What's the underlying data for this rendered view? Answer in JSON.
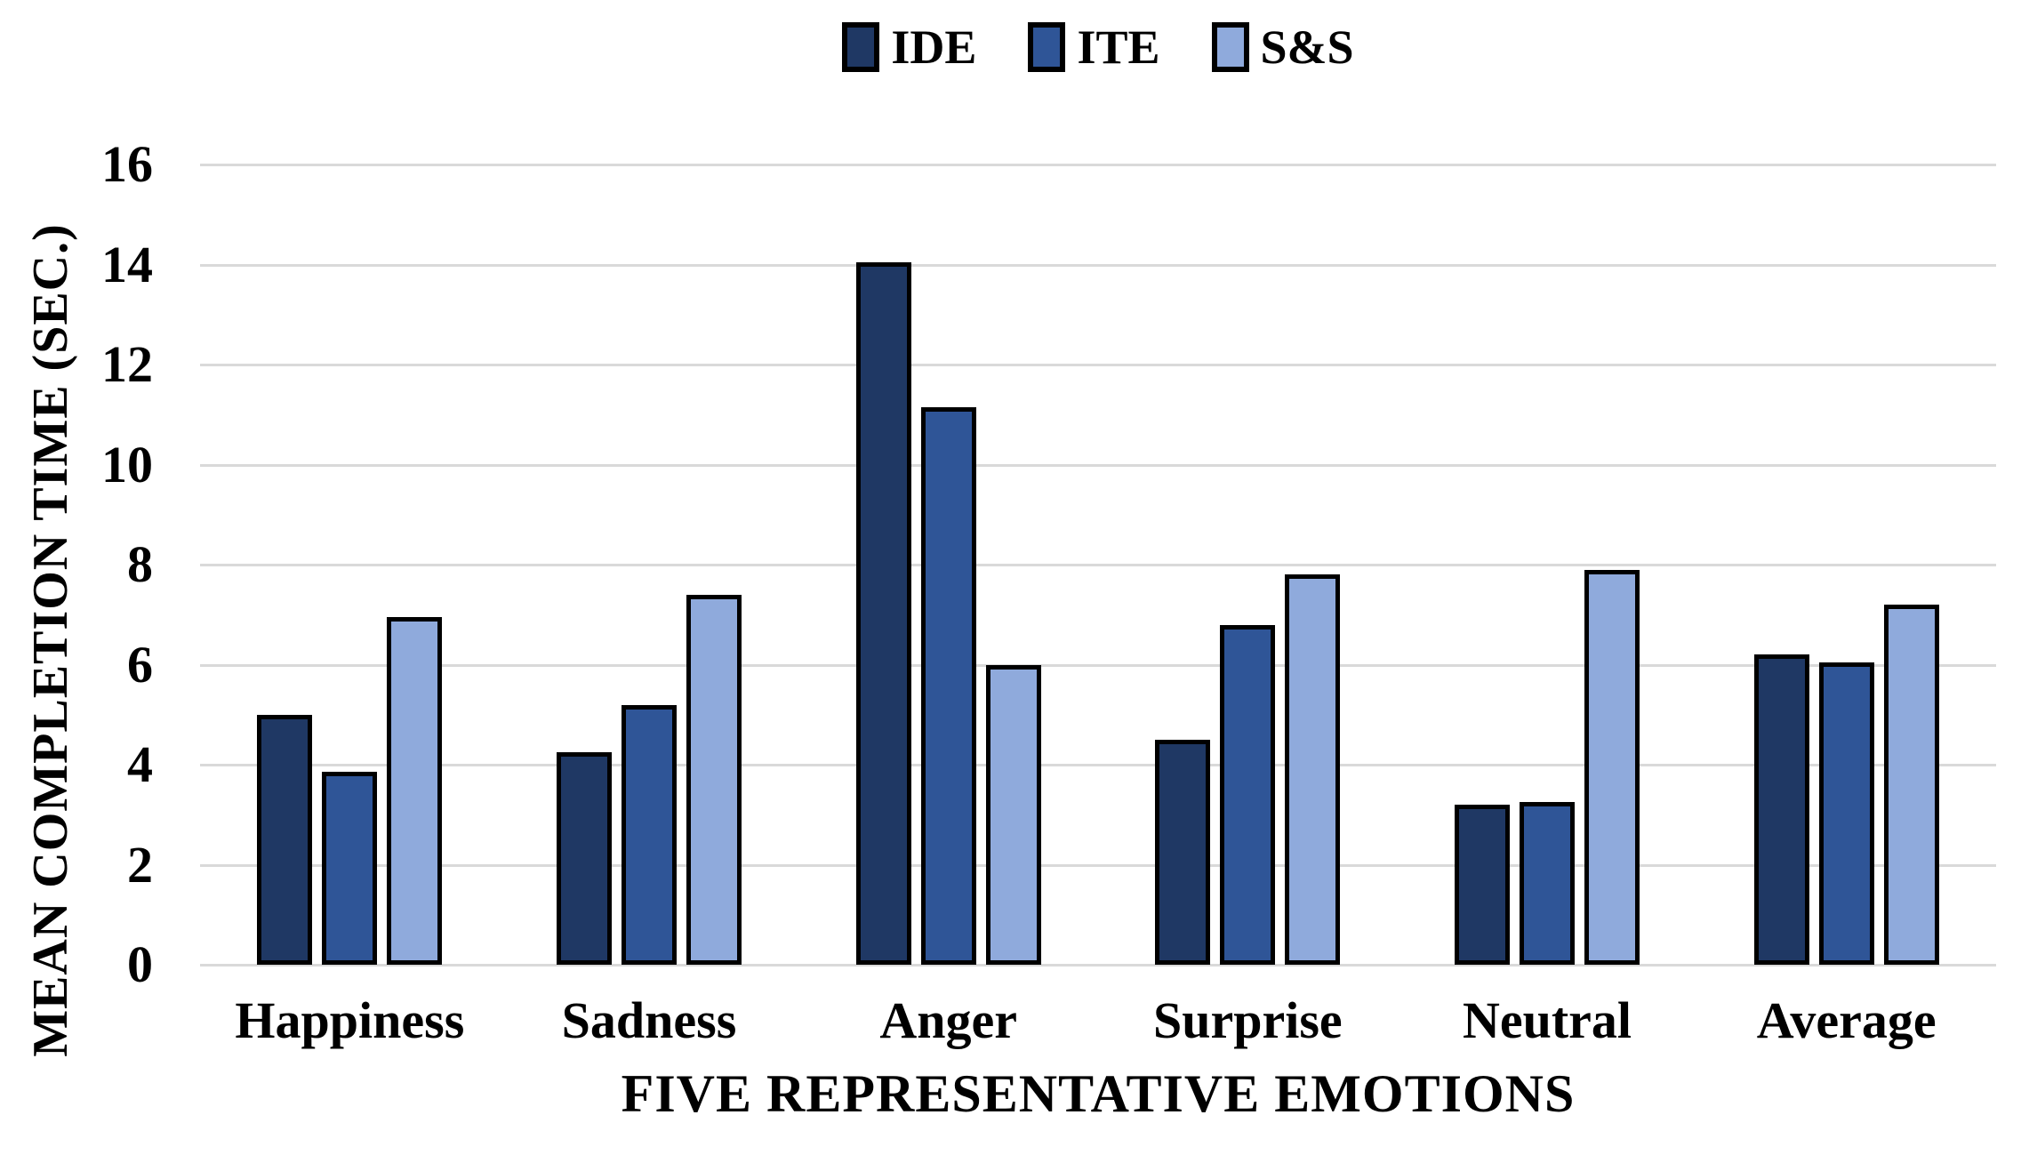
{
  "chart_data": {
    "type": "bar",
    "title": "",
    "categories": [
      "Happiness",
      "Sadness",
      "Anger",
      "Surprise",
      "Neutral",
      "Average"
    ],
    "series": [
      {
        "name": "IDE",
        "color": "#1F3864",
        "values": [
          5.0,
          4.25,
          14.05,
          4.5,
          3.2,
          6.2
        ]
      },
      {
        "name": "ITE",
        "color": "#2F5597",
        "values": [
          3.85,
          5.2,
          11.15,
          6.8,
          3.25,
          6.05
        ]
      },
      {
        "name": "S&S",
        "color": "#8FAADC",
        "values": [
          6.95,
          7.4,
          6.0,
          7.8,
          7.9,
          7.2
        ]
      }
    ],
    "xlabel": "FIVE REPRESENTATIVE EMOTIONS",
    "ylabel": "MEAN COMPLETION TIME (SEC.)",
    "ylim": [
      0,
      16
    ],
    "ytick_step": 2,
    "ytick_labels": [
      "0",
      "2",
      "4",
      "6",
      "8",
      "10",
      "12",
      "14",
      "16"
    ],
    "grid": true,
    "gridline_color": "#D9D9D9",
    "bar_outline_color": "#000000",
    "background_color": "#FFFFFF",
    "legend_position": "top"
  }
}
